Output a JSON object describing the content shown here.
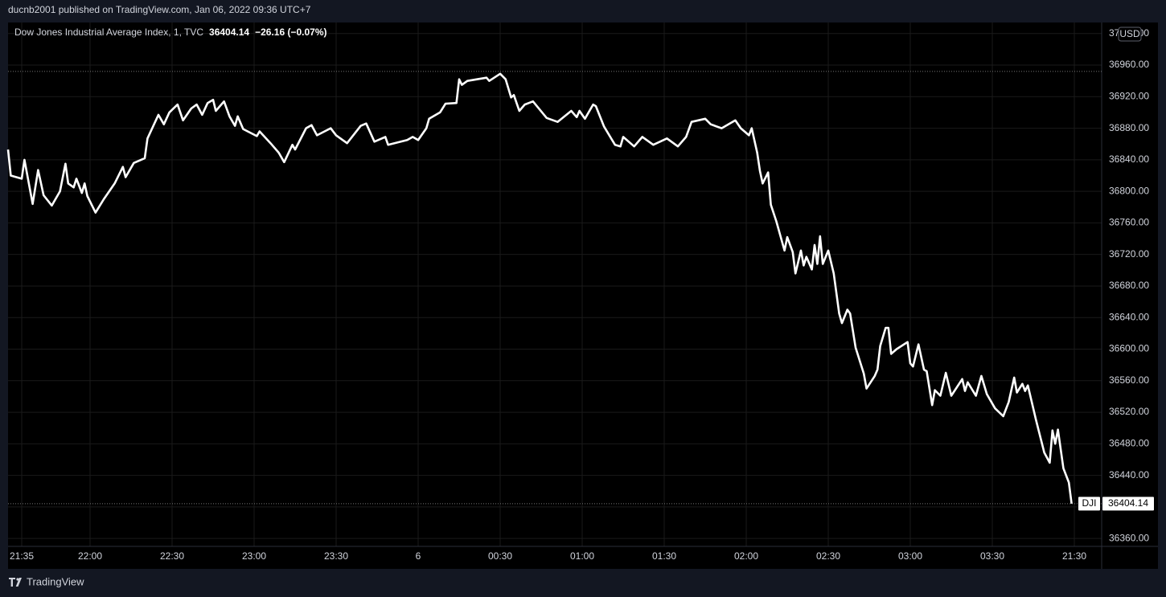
{
  "header": {
    "publisher": "ducnb2001 published on TradingView.com, Jan 06, 2022 09:36 UTC+7"
  },
  "footer": {
    "brand": "TradingView"
  },
  "chart_data": {
    "type": "line",
    "title": "Dow Jones Industrial Average Index, 1, TVC",
    "change": "−26.16 (−0.07%)",
    "currency": "USD",
    "grid": true,
    "background": "#000000",
    "grid_color": "#1a1a1a",
    "high_line": 36952,
    "xlim": [
      0,
      400
    ],
    "xticks": [
      {
        "value": 5,
        "label": "21:35"
      },
      {
        "value": 30,
        "label": "22:00"
      },
      {
        "value": 60,
        "label": "22:30"
      },
      {
        "value": 90,
        "label": "23:00"
      },
      {
        "value": 120,
        "label": "23:30"
      },
      {
        "value": 150,
        "label": "6"
      },
      {
        "value": 180,
        "label": "00:30"
      },
      {
        "value": 210,
        "label": "01:00"
      },
      {
        "value": 240,
        "label": "01:30"
      },
      {
        "value": 270,
        "label": "02:00"
      },
      {
        "value": 300,
        "label": "02:30"
      },
      {
        "value": 330,
        "label": "03:00"
      },
      {
        "value": 360,
        "label": "03:30"
      },
      {
        "value": 390,
        "label": "21:30"
      }
    ],
    "ylim": [
      36350,
      37014
    ],
    "yticks": [
      {
        "value": 36360,
        "label": "36360.00"
      },
      {
        "value": 36400,
        "label": "36400.00"
      },
      {
        "value": 36440,
        "label": "36440.00"
      },
      {
        "value": 36480,
        "label": "36480.00"
      },
      {
        "value": 36520,
        "label": "36520.00"
      },
      {
        "value": 36560,
        "label": "36560.00"
      },
      {
        "value": 36600,
        "label": "36600.00"
      },
      {
        "value": 36640,
        "label": "36640.00"
      },
      {
        "value": 36680,
        "label": "36680.00"
      },
      {
        "value": 36720,
        "label": "36720.00"
      },
      {
        "value": 36760,
        "label": "36760.00"
      },
      {
        "value": 36800,
        "label": "36800.00"
      },
      {
        "value": 36840,
        "label": "36840.00"
      },
      {
        "value": 36880,
        "label": "36880.00"
      },
      {
        "value": 36920,
        "label": "36920.00"
      },
      {
        "value": 36960,
        "label": "36960.00"
      },
      {
        "value": 37000,
        "label": "37000.00"
      }
    ],
    "x": [
      0,
      1,
      5,
      6,
      9,
      11,
      13,
      16,
      19,
      21,
      22,
      24,
      25,
      27,
      28,
      29,
      32,
      35,
      39,
      42,
      43,
      46,
      50,
      51,
      55,
      57,
      59,
      62,
      64,
      67,
      69,
      71,
      73,
      75,
      76,
      79,
      81,
      83,
      84,
      86,
      91,
      92,
      96,
      99,
      101,
      104,
      105,
      109,
      111,
      113,
      118,
      120,
      124,
      129,
      131,
      134,
      138,
      139,
      146,
      148,
      150,
      153,
      154,
      158,
      160,
      164,
      165,
      166,
      168,
      175,
      176,
      180,
      182,
      184,
      185,
      187,
      189,
      192,
      197,
      201,
      206,
      208,
      209,
      211,
      214,
      215,
      218,
      222,
      224,
      225,
      229,
      232,
      236,
      241,
      245,
      248,
      250,
      255,
      257,
      261,
      266,
      268,
      271,
      272,
      274,
      275,
      276,
      278,
      279,
      281,
      284,
      285,
      287,
      288,
      290,
      291,
      292,
      294,
      295,
      296,
      297,
      298,
      300,
      302,
      304,
      305,
      307,
      308,
      310,
      313,
      314,
      317,
      318,
      319,
      321,
      322,
      323,
      325,
      329,
      330,
      331,
      333,
      335,
      336,
      338,
      339,
      341,
      343,
      345,
      349,
      350,
      351,
      354,
      356,
      358,
      361,
      364,
      366,
      368,
      369,
      371,
      372,
      373,
      376,
      379,
      381,
      382,
      383,
      384,
      386,
      388,
      389
    ],
    "series": [
      {
        "name": "DJI",
        "color": "#ffffff",
        "values": [
          36853,
          36820,
          36816,
          36840,
          36784,
          36827,
          36795,
          36782,
          36800,
          36835,
          36810,
          36805,
          36816,
          36798,
          36810,
          36794,
          36773,
          36790,
          36810,
          36831,
          36818,
          36836,
          36842,
          36867,
          36897,
          36885,
          36900,
          36910,
          36890,
          36905,
          36910,
          36897,
          36912,
          36916,
          36902,
          36914,
          36895,
          36883,
          36895,
          36879,
          36870,
          36876,
          36861,
          36849,
          36837,
          36859,
          36853,
          36880,
          36884,
          36871,
          36880,
          36871,
          36861,
          36883,
          36886,
          36863,
          36869,
          36859,
          36865,
          36869,
          36865,
          36880,
          36892,
          36900,
          36911,
          36912,
          36942,
          36935,
          36940,
          36944,
          36940,
          36949,
          36942,
          36919,
          36922,
          36902,
          36910,
          36914,
          36893,
          36888,
          36902,
          36894,
          36902,
          36892,
          36910,
          36908,
          36882,
          36859,
          36857,
          36869,
          36857,
          36869,
          36859,
          36867,
          36857,
          36869,
          36888,
          36892,
          36885,
          36880,
          36890,
          36880,
          36871,
          36880,
          36849,
          36826,
          36810,
          36824,
          36783,
          36762,
          36725,
          36742,
          36723,
          36696,
          36725,
          36706,
          36717,
          36701,
          36732,
          36708,
          36743,
          36708,
          36725,
          36696,
          36645,
          36633,
          36650,
          36645,
          36602,
          36569,
          36550,
          36566,
          36574,
          36604,
          36627,
          36627,
          36594,
          36600,
          36609,
          36582,
          36578,
          36606,
          36574,
          36572,
          36529,
          36548,
          36541,
          36570,
          36541,
          36562,
          36547,
          36558,
          36541,
          36566,
          36543,
          36525,
          36515,
          36533,
          36564,
          36545,
          36556,
          36547,
          36554,
          36510,
          36469,
          36456,
          36497,
          36480,
          36498,
          36449,
          36431,
          36404.14
        ]
      }
    ]
  }
}
